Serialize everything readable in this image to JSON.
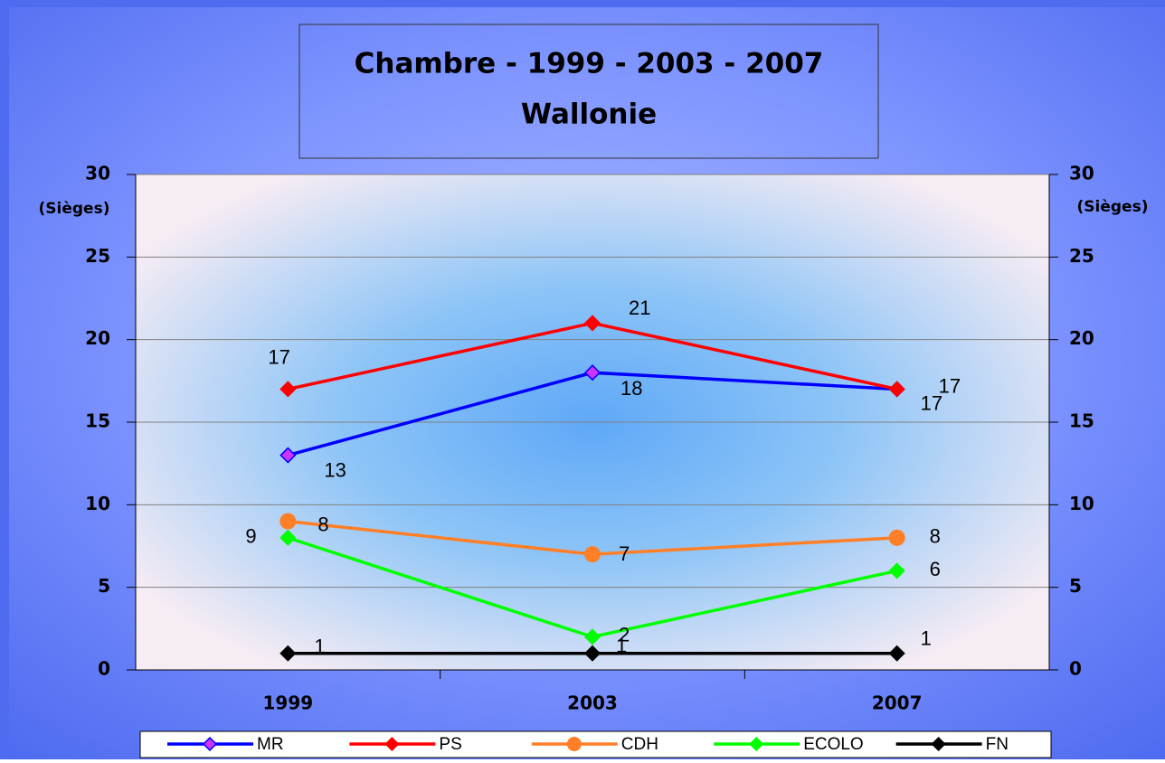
{
  "chart_data": {
    "type": "line",
    "title": "Chambre - 1999 - 2003 - 2007",
    "subtitle": "Wallonie",
    "ylabel": "(Sièges)",
    "y2label": "(Sièges)",
    "categories": [
      "1999",
      "2003",
      "2007"
    ],
    "ylim": [
      0,
      30
    ],
    "yticks": [
      0,
      5,
      10,
      15,
      20,
      25,
      30
    ],
    "y2lim": [
      0,
      30
    ],
    "y2ticks": [
      0,
      5,
      10,
      15,
      20,
      25,
      30
    ],
    "grid": true,
    "legend": "bottom",
    "series": [
      {
        "name": "MR",
        "color": "#0000ff",
        "marker": "diamond",
        "marker_color": "#cc33ff",
        "values": [
          13,
          18,
          17
        ]
      },
      {
        "name": "PS",
        "color": "#ff0000",
        "marker": "diamond",
        "marker_color": "#ff0000",
        "values": [
          17,
          21,
          17
        ]
      },
      {
        "name": "CDH",
        "color": "#ff7f27",
        "marker": "circle",
        "marker_color": "#ff7f27",
        "values": [
          9,
          7,
          8
        ]
      },
      {
        "name": "ECOLO",
        "color": "#00ff00",
        "marker": "diamond",
        "marker_color": "#00ff00",
        "values": [
          8,
          2,
          6
        ]
      },
      {
        "name": "FN",
        "color": "#000000",
        "marker": "diamond",
        "marker_color": "#000000",
        "values": [
          1,
          1,
          1
        ]
      }
    ]
  }
}
